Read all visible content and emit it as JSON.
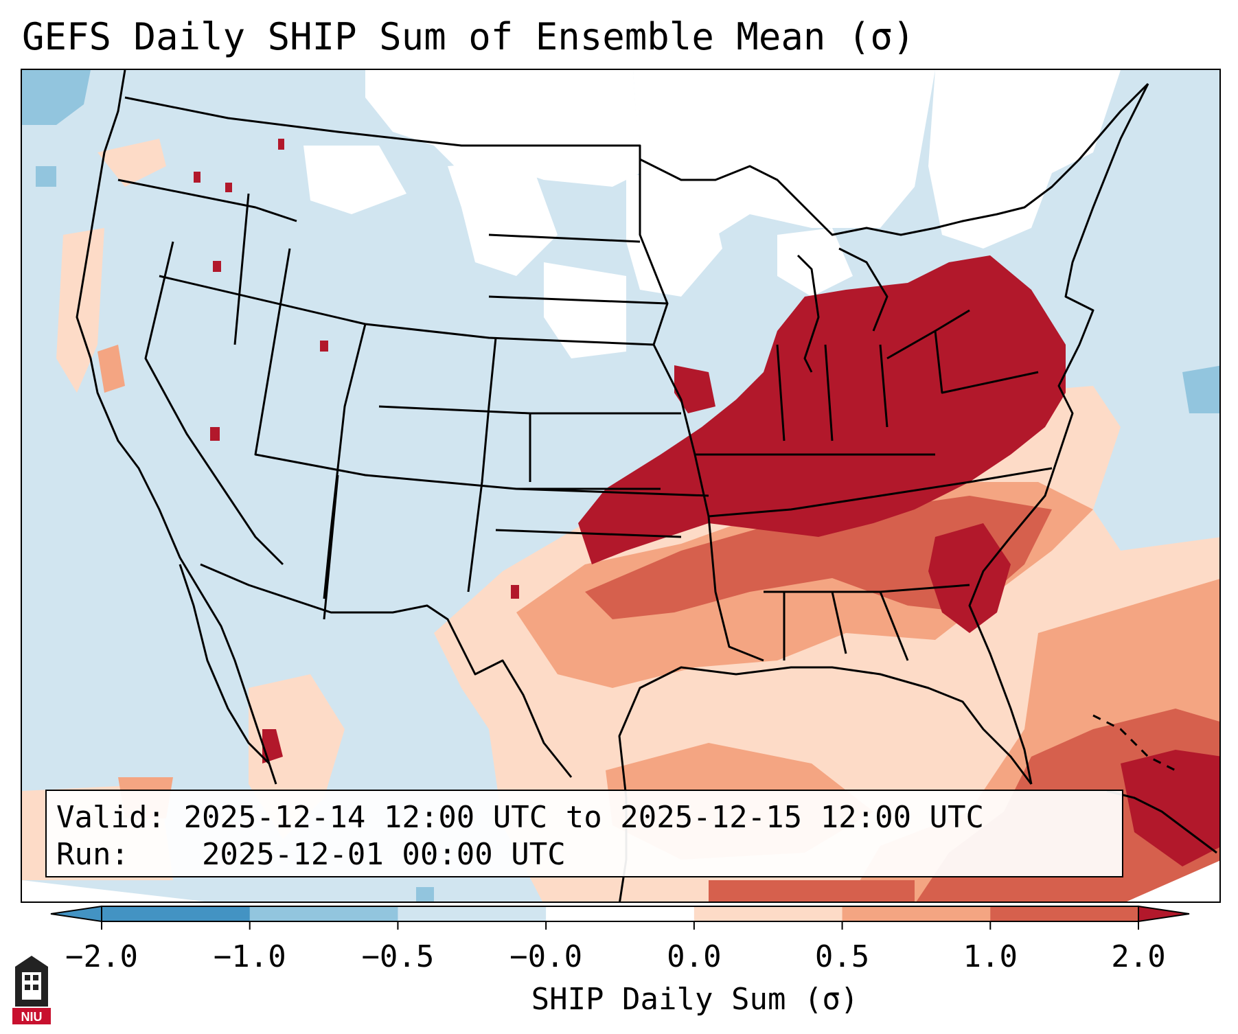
{
  "title": "GEFS Daily SHIP Sum of Ensemble Mean (σ)",
  "info": {
    "valid_label": "Valid:",
    "valid_value": "2025-12-14 12:00 UTC to 2025-12-15 12:00 UTC",
    "run_label": "Run:",
    "run_value": "2025-12-01 00:00 UTC"
  },
  "colorbar": {
    "label": "SHIP Daily Sum (σ)",
    "ticks": [
      "−2.0",
      "−1.0",
      "−0.5",
      "−0.0",
      "0.0",
      "0.5",
      "1.0",
      "2.0"
    ],
    "colors": [
      "#4393c3",
      "#92c5de",
      "#d1e5f0",
      "#ffffff",
      "#fddbc7",
      "#f4a582",
      "#d6604d",
      "#b2182b"
    ],
    "extend": "both"
  },
  "logo": {
    "text": "NIU",
    "colors": {
      "red": "#c8102e",
      "dark": "#222222"
    }
  },
  "map": {
    "region": "Contiguous United States, southern Canada, northern Mexico, Gulf of Mexico",
    "projection": "Lambert conformal",
    "category_colors": {
      "white": "#ffffff",
      "light_blue": "#d1e5f0",
      "mid_blue": "#92c5de",
      "pale_red": "#fddbc7",
      "light_red": "#f4a582",
      "mid_red": "#d6604d",
      "dark_red": "#b2182b"
    }
  }
}
